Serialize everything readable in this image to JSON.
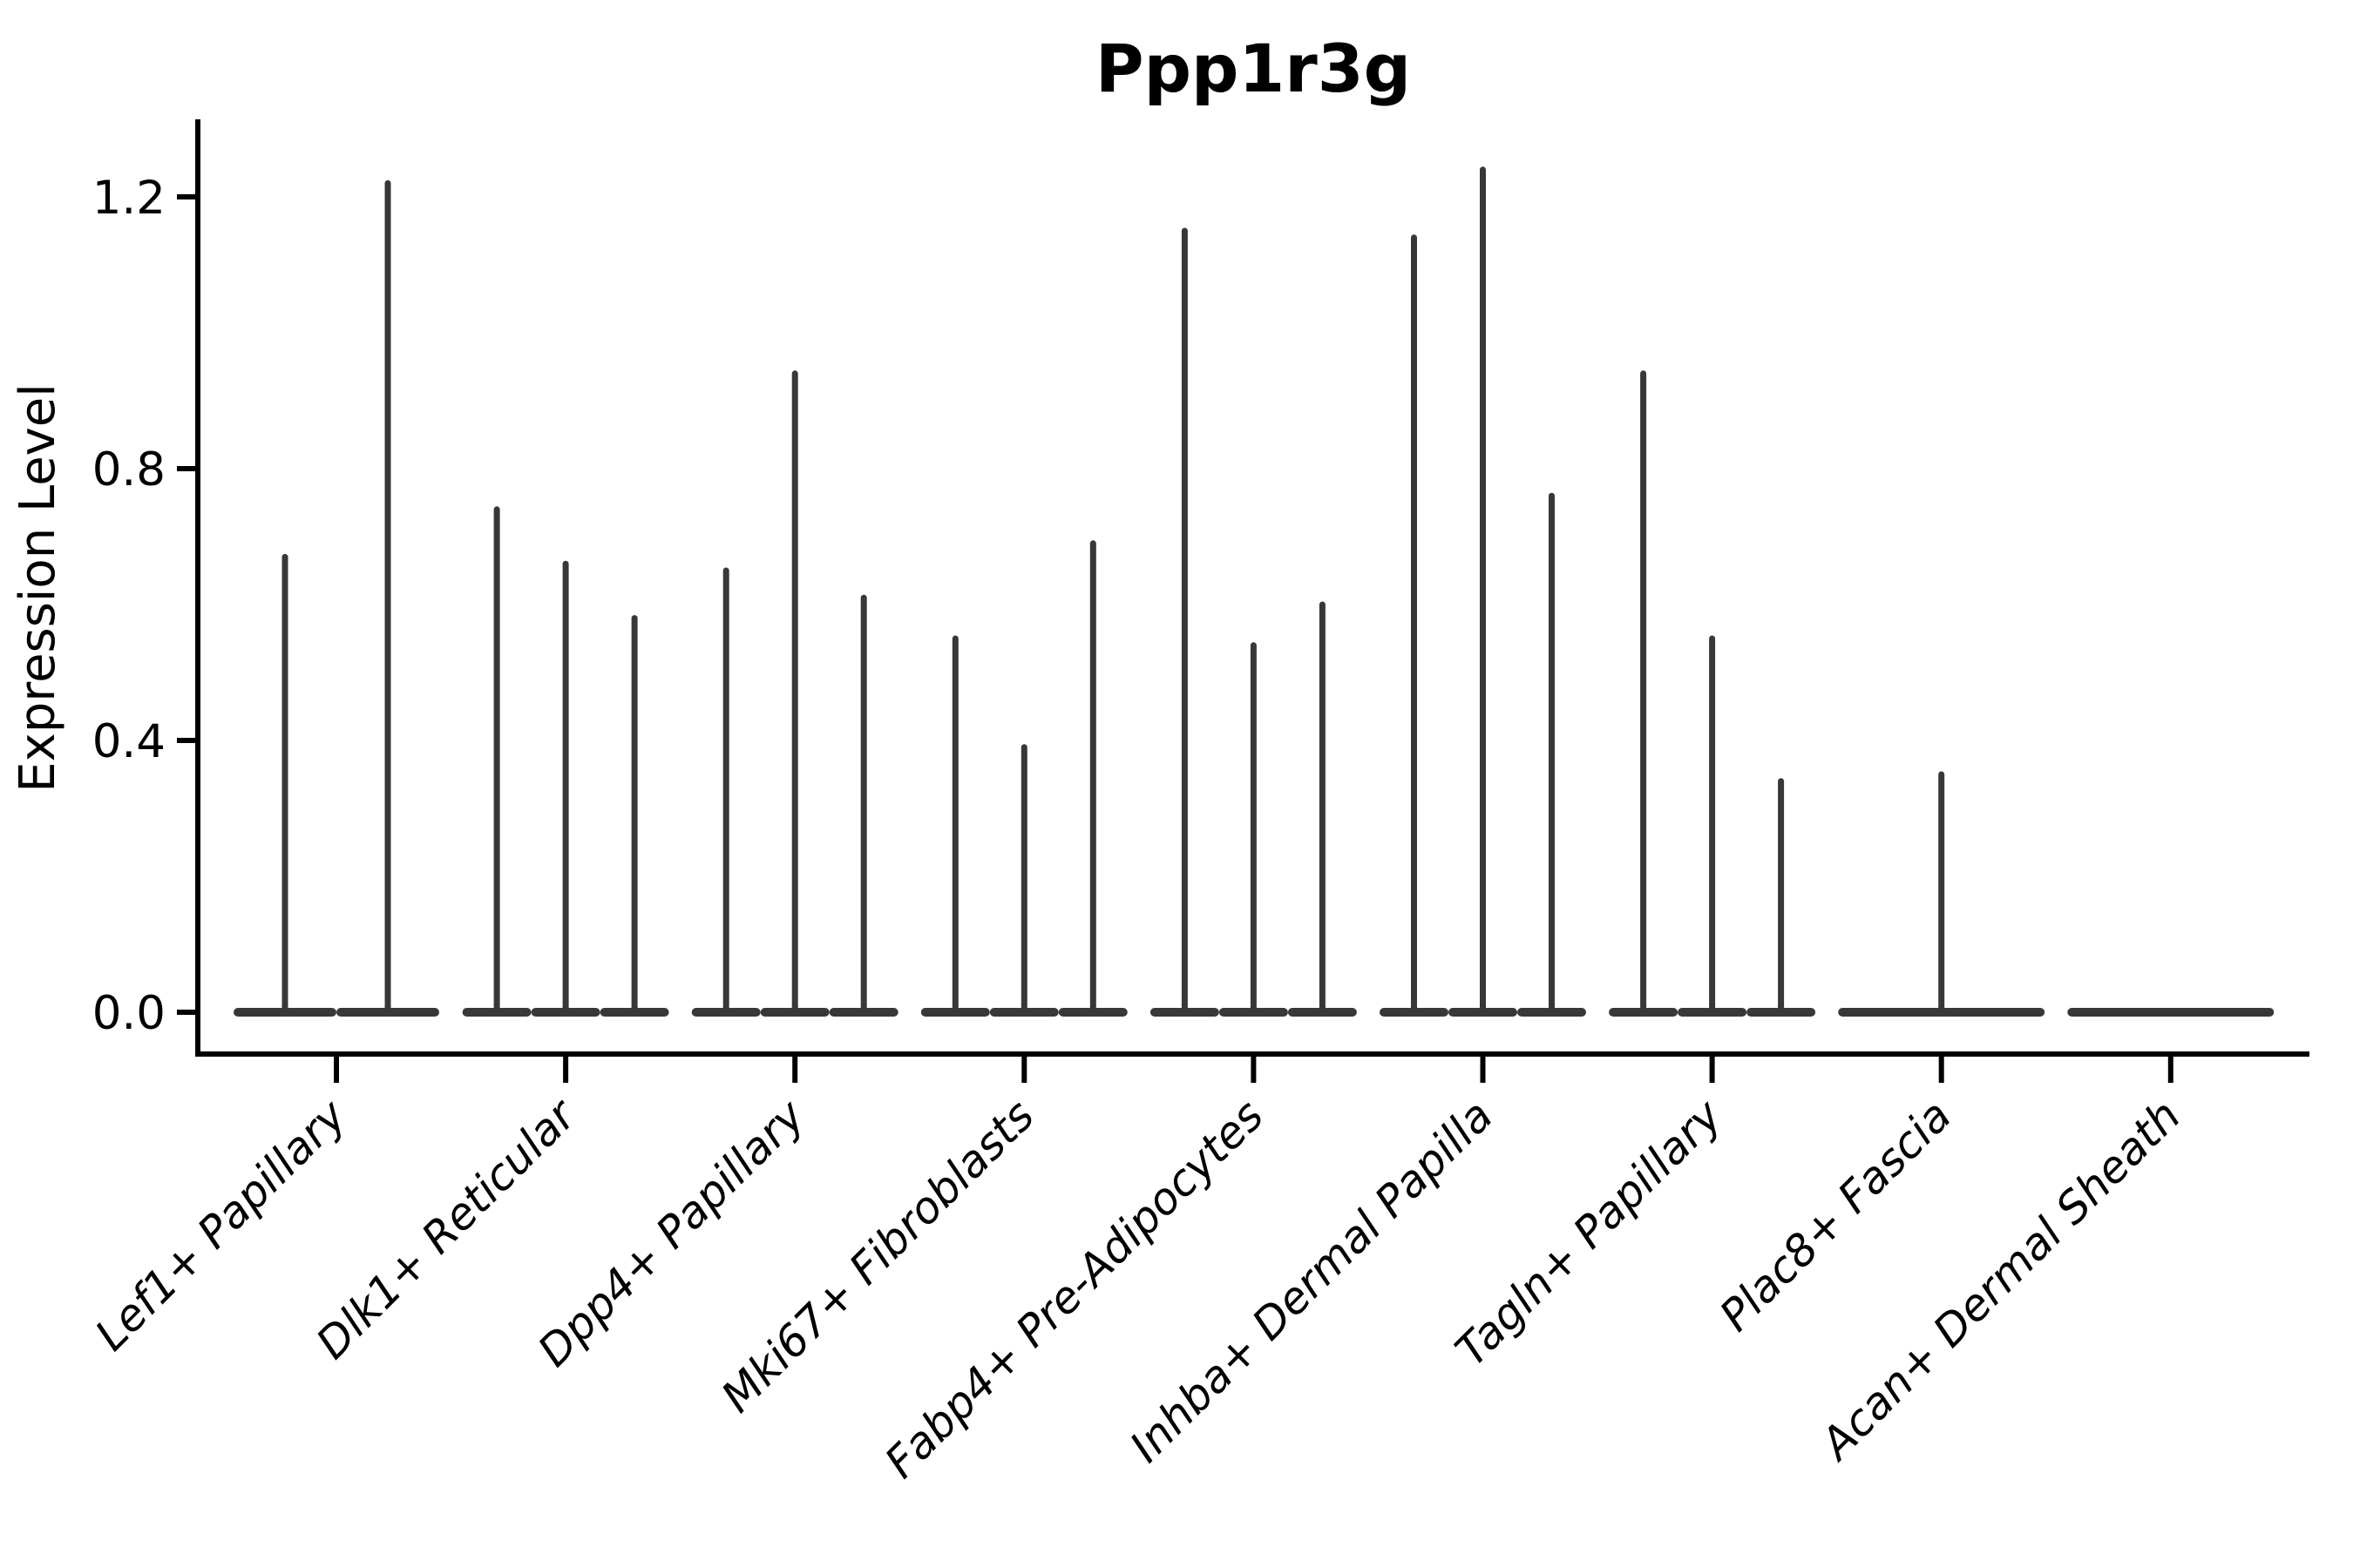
{
  "figure": {
    "title": "Ppp1r3g"
  },
  "chart_data": {
    "type": "violin",
    "title": "Ppp1r3g",
    "ylabel": "Expression Level",
    "xlabel": "",
    "ytick_labels": [
      "0.0",
      "0.4",
      "0.8",
      "1.2"
    ],
    "ytick_values": [
      0.0,
      0.4,
      0.8,
      1.2
    ],
    "ylim": [
      0,
      1.31
    ],
    "grid": false,
    "legend": "none",
    "x_label_rotation_deg": 45,
    "categories": [
      "Lef1+ Papillary",
      "Dlk1+ Reticular",
      "Dpp4+ Papillary",
      "Mki67+ Fibroblasts",
      "Fabp4+ Pre-Adipocytes",
      "Inhba+ Dermal Papilla",
      "Tagln+ Papillary",
      "Plac8+ Fascia",
      "Acan+ Dermal Sheath"
    ],
    "groups": [
      {
        "label": "Lef1+ Papillary",
        "violin_max_expression": [
          0.67,
          1.22
        ]
      },
      {
        "label": "Dlk1+ Reticular",
        "violin_max_expression": [
          0.74,
          0.66,
          0.58
        ]
      },
      {
        "label": "Dpp4+ Papillary",
        "violin_max_expression": [
          0.65,
          0.94,
          0.61
        ]
      },
      {
        "label": "Mki67+ Fibroblasts",
        "violin_max_expression": [
          0.55,
          0.39,
          0.69
        ]
      },
      {
        "label": "Fabp4+ Pre-Adipocytes",
        "violin_max_expression": [
          1.15,
          0.54,
          0.6
        ]
      },
      {
        "label": "Inhba+ Dermal Papilla",
        "violin_max_expression": [
          1.14,
          1.24,
          0.76
        ]
      },
      {
        "label": "Tagln+ Papillary",
        "violin_max_expression": [
          0.94,
          0.55,
          0.34
        ]
      },
      {
        "label": "Plac8+ Fascia",
        "violin_max_expression": [
          0.35
        ]
      },
      {
        "label": "Acan+ Dermal Sheath",
        "violin_max_expression": [
          0.0
        ]
      }
    ],
    "colors": {
      "violin": "#383838",
      "axis": "#000000",
      "text": "#000000",
      "background": "#ffffff"
    }
  }
}
